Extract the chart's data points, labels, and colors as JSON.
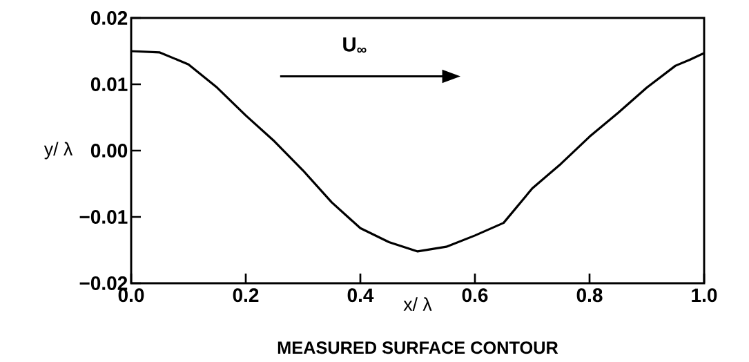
{
  "chart_data": {
    "type": "line",
    "title": "MEASURED SURFACE CONTOUR",
    "xlabel": "x/ λ",
    "ylabel": "y/ λ",
    "annotations": [
      "U$_{∞}$"
    ],
    "x": [
      0,
      0.05,
      0.1,
      0.15,
      0.2,
      0.25,
      0.3,
      0.35,
      0.4,
      0.45,
      0.5,
      0.55,
      0.6,
      0.65,
      0.7,
      0.75,
      0.8,
      0.85,
      0.9,
      0.95,
      0.975,
      1.0
    ],
    "series": [
      {
        "color": "#000000",
        "values": [
          0.015,
          0.0148,
          0.013,
          0.0095,
          0.0053,
          0.0014,
          -0.003,
          -0.0078,
          -0.0117,
          -0.0138,
          -0.0152,
          -0.0145,
          -0.0128,
          -0.0109,
          -0.0057,
          -0.002,
          0.0021,
          0.0057,
          0.0095,
          0.0128,
          0.0137,
          0.0147
        ]
      }
    ],
    "xlim": [
      0,
      1
    ],
    "ylim": [
      -0.02,
      0.02
    ],
    "xticks": [
      {
        "value": 0,
        "label": "0.0"
      },
      {
        "value": 0.2,
        "label": "0.2"
      },
      {
        "value": 0.4,
        "label": "0.4"
      },
      {
        "value": 0.6,
        "label": "0.6"
      },
      {
        "value": 0.8,
        "label": "0.8"
      },
      {
        "value": 1,
        "label": "1.0"
      }
    ],
    "yticks": [
      {
        "value": -0.02,
        "label": "−0.02"
      },
      {
        "value": -0.01,
        "label": "−0.01"
      },
      {
        "value": 0,
        "label": "0.00"
      },
      {
        "value": 0.01,
        "label": "0.01"
      },
      {
        "value": 0.02,
        "label": "0.02"
      }
    ],
    "grid": false,
    "marker": "none",
    "line_style": "solid"
  }
}
